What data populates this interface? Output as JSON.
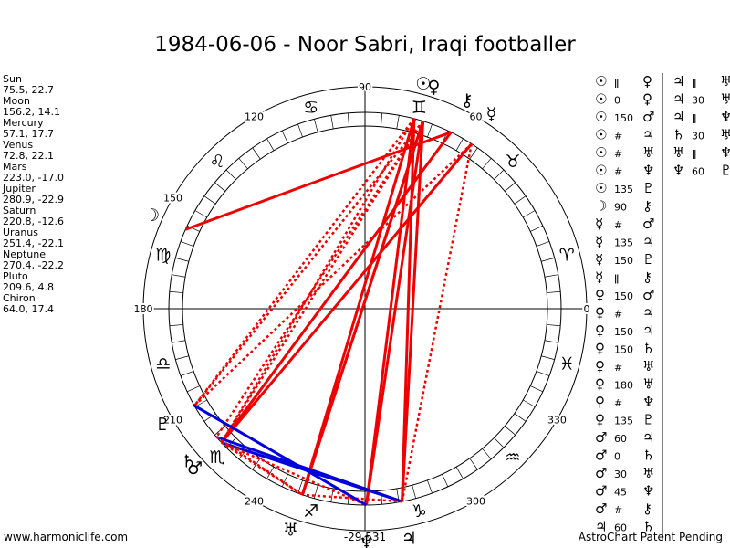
{
  "header": {
    "title": "1984-06-06 - Noor Sabri, Iraqi footballer"
  },
  "planets": [
    {
      "name": "Sun",
      "coords": "75.5, 22.7",
      "glyph": "☉"
    },
    {
      "name": "Moon",
      "coords": "156.2, 14.1",
      "glyph": "☽"
    },
    {
      "name": "Mercury",
      "coords": "57.1, 17.7",
      "glyph": "☿"
    },
    {
      "name": "Venus",
      "coords": "72.8, 22.1",
      "glyph": "♀"
    },
    {
      "name": "Mars",
      "coords": "223.0, -17.0",
      "glyph": "♂"
    },
    {
      "name": "Jupiter",
      "coords": "280.9, -22.9",
      "glyph": "♃"
    },
    {
      "name": "Saturn",
      "coords": "220.8, -12.6",
      "glyph": "♄"
    },
    {
      "name": "Uranus",
      "coords": "251.4, -22.1",
      "glyph": "♅"
    },
    {
      "name": "Neptune",
      "coords": "270.4, -22.2",
      "glyph": "♆"
    },
    {
      "name": "Pluto",
      "coords": "209.6, 4.8",
      "glyph": "♇"
    },
    {
      "name": "Chiron",
      "coords": "64.0, 17.4",
      "glyph": "⚷"
    }
  ],
  "wheel": {
    "degree_labels": [
      "0",
      "60",
      "90",
      "120",
      "150",
      "180",
      "210",
      "240",
      "300",
      "330"
    ],
    "signs": [
      "♈",
      "♉",
      "♊",
      "♋",
      "♌",
      "♍",
      "♎",
      "♏",
      "♐",
      "♑",
      "♒",
      "♓"
    ]
  },
  "aspects": [
    [
      [
        "☉",
        "ǁ",
        "♀"
      ],
      [
        "☉",
        "0",
        "♀"
      ],
      [
        "☉",
        "150",
        "♂"
      ],
      [
        "☉",
        "#",
        "♃"
      ],
      [
        "☉",
        "#",
        "♅"
      ],
      [
        "☉",
        "#",
        "♆"
      ],
      [
        "☉",
        "135",
        "♇"
      ],
      [
        "☽",
        "90",
        "⚷"
      ],
      [
        "☿",
        "#",
        "♂"
      ],
      [
        "☿",
        "135",
        "♃"
      ],
      [
        "☿",
        "150",
        "♇"
      ],
      [
        "☿",
        "ǁ",
        "⚷"
      ],
      [
        "♀",
        "150",
        "♂"
      ],
      [
        "♀",
        "#",
        "♃"
      ],
      [
        "♀",
        "150",
        "♃"
      ],
      [
        "♀",
        "150",
        "♄"
      ],
      [
        "♀",
        "#",
        "♅"
      ],
      [
        "♀",
        "180",
        "♅"
      ],
      [
        "♀",
        "#",
        "♆"
      ],
      [
        "♀",
        "135",
        "♇"
      ],
      [
        "♂",
        "60",
        "♃"
      ],
      [
        "♂",
        "0",
        "♄"
      ],
      [
        "♂",
        "30",
        "♅"
      ],
      [
        "♂",
        "45",
        "♆"
      ],
      [
        "♂",
        "#",
        "⚷"
      ],
      [
        "♃",
        "60",
        "♄"
      ]
    ],
    [
      [
        "♃",
        "ǁ",
        "♅"
      ],
      [
        "♃",
        "30",
        "♅"
      ],
      [
        "♃",
        "ǁ",
        "♆"
      ],
      [
        "♄",
        "30",
        "♅"
      ],
      [
        "♅",
        "ǁ",
        "♆"
      ],
      [
        "♆",
        "60",
        "♇"
      ]
    ]
  ],
  "footer": {
    "site": "www.harmoniclife.com",
    "code": "-29,531",
    "notice": "AstroChart Patent Pending"
  }
}
